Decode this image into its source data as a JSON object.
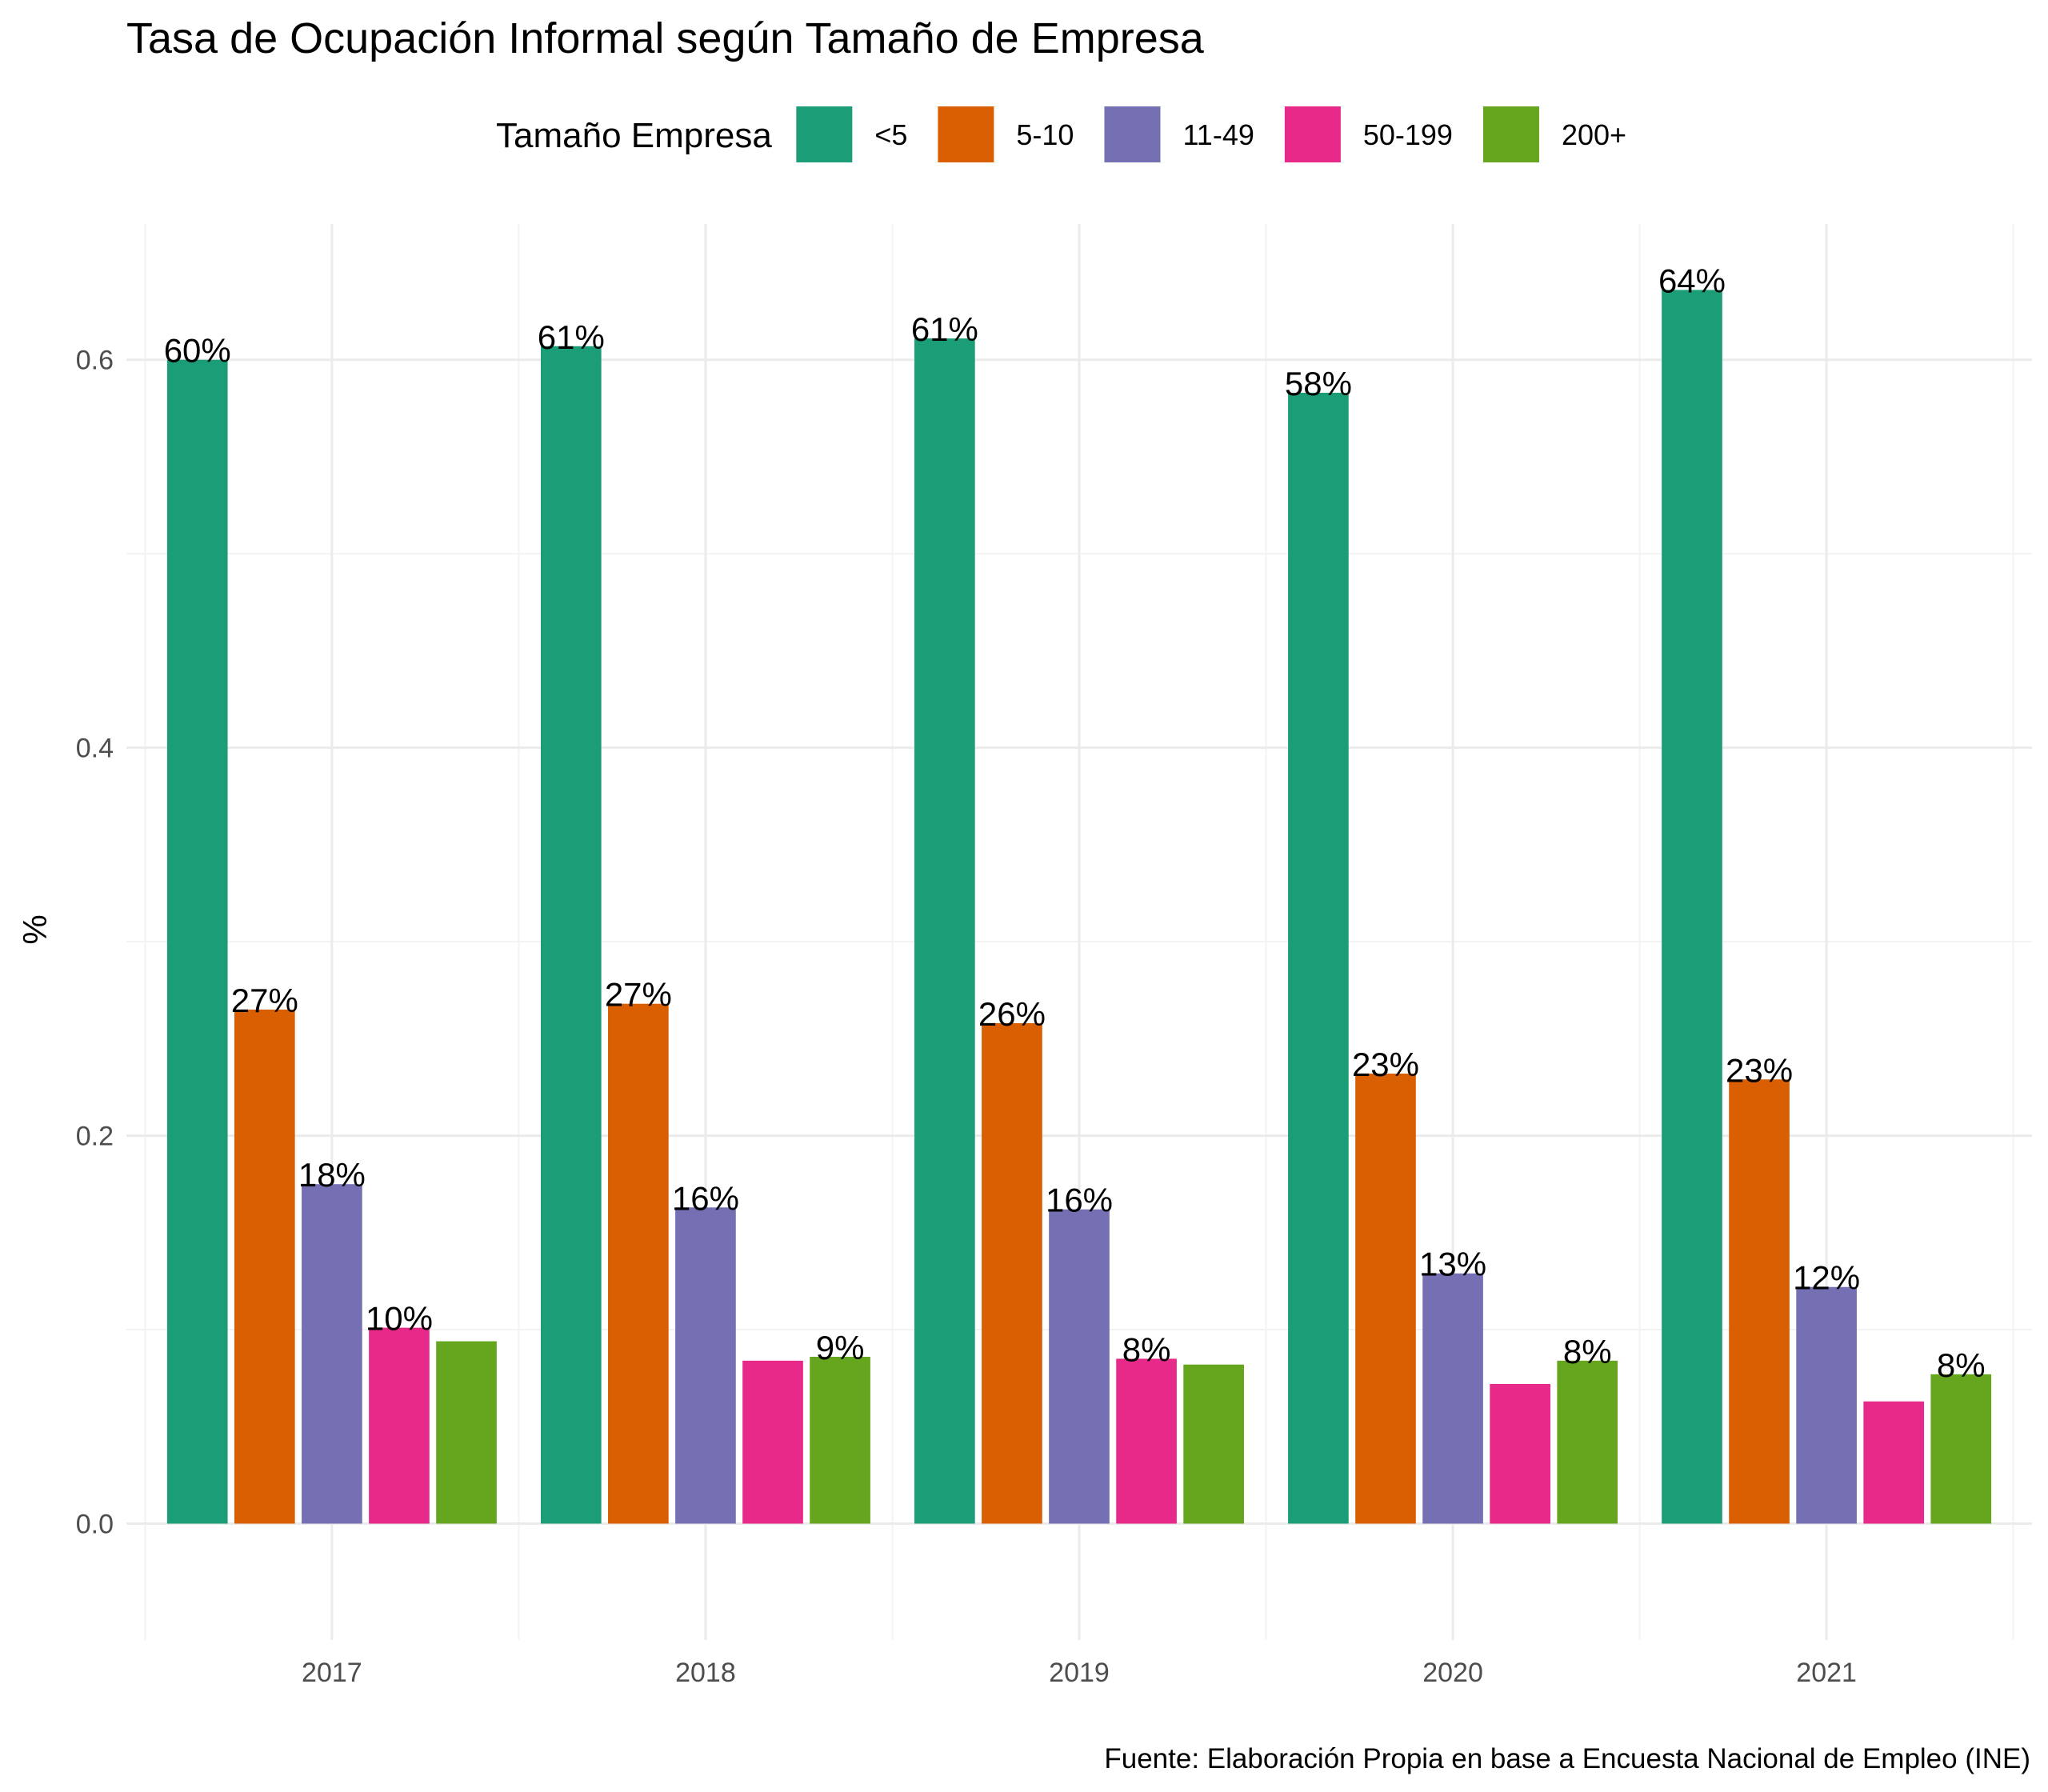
{
  "chart_data": {
    "type": "bar",
    "title": "Tasa de Ocupación Informal según Tamaño de Empresa",
    "xlabel": "",
    "ylabel": "%",
    "caption": "Fuente: Elaboración Propia en base a Encuesta Nacional de Empleo (INE)",
    "legend_title": "Tamaño Empresa",
    "legend_position": "top",
    "grid": true,
    "ylim": [
      -0.06,
      0.67
    ],
    "y_ticks": [
      "0.0",
      "0.2",
      "0.4",
      "0.6"
    ],
    "y_tick_values": [
      0.0,
      0.2,
      0.4,
      0.6
    ],
    "categories": [
      "2017",
      "2018",
      "2019",
      "2020",
      "2021"
    ],
    "series": [
      {
        "name": "<5",
        "color": "#1b9e77",
        "values": [
          0.6,
          0.607,
          0.611,
          0.583,
          0.636
        ],
        "labels": [
          "60%",
          "61%",
          "61%",
          "58%",
          "64%"
        ]
      },
      {
        "name": "5-10",
        "color": "#d95f02",
        "values": [
          0.265,
          0.268,
          0.258,
          0.232,
          0.229
        ],
        "labels": [
          "27%",
          "27%",
          "26%",
          "23%",
          "23%"
        ]
      },
      {
        "name": "11-49",
        "color": "#7570b3",
        "values": [
          0.175,
          0.163,
          0.162,
          0.129,
          0.122
        ],
        "labels": [
          "18%",
          "16%",
          "16%",
          "13%",
          "12%"
        ]
      },
      {
        "name": "50-199",
        "color": "#e7298a",
        "values": [
          0.101,
          0.084,
          0.085,
          0.072,
          0.063
        ],
        "labels": [
          "10%",
          "",
          "8%",
          "",
          ""
        ]
      },
      {
        "name": "200+",
        "color": "#66a61e",
        "values": [
          0.094,
          0.086,
          0.082,
          0.084,
          0.077
        ],
        "labels": [
          "",
          "9%",
          "",
          "8%",
          "8%"
        ]
      }
    ]
  }
}
